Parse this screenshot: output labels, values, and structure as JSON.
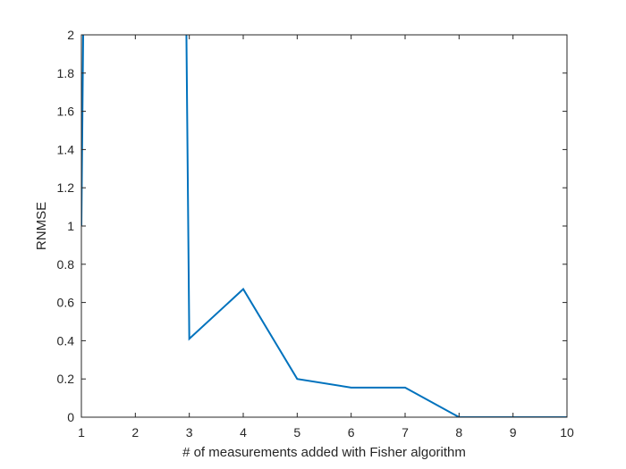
{
  "chart_data": {
    "type": "line",
    "title": "",
    "xlabel": "# of measurements added with Fisher algorithm",
    "ylabel": "RNMSE",
    "xlim": [
      1,
      10
    ],
    "ylim": [
      0,
      2
    ],
    "xticks": [
      1,
      2,
      3,
      4,
      5,
      6,
      7,
      8,
      9,
      10
    ],
    "xtick_labels": [
      "1",
      "2",
      "3",
      "4",
      "5",
      "6",
      "7",
      "8",
      "9",
      "10"
    ],
    "yticks": [
      0,
      0.2,
      0.4,
      0.6,
      0.8,
      1,
      1.2,
      1.4,
      1.6,
      1.8,
      2
    ],
    "ytick_labels": [
      "0",
      "0.2",
      "0.4",
      "0.6",
      "0.8",
      "1",
      "1.2",
      "1.4",
      "1.6",
      "1.8",
      "2"
    ],
    "grid": false,
    "legend": "none",
    "series": [
      {
        "color": "#0072BD",
        "x": [
          1,
          1.05,
          2.93,
          3,
          4,
          5,
          6,
          7,
          8,
          9,
          10
        ],
        "y": [
          1.0,
          2.5,
          2.5,
          0.41,
          0.67,
          0.2,
          0.155,
          0.155,
          0.0,
          0.0,
          0.0
        ]
      }
    ]
  }
}
